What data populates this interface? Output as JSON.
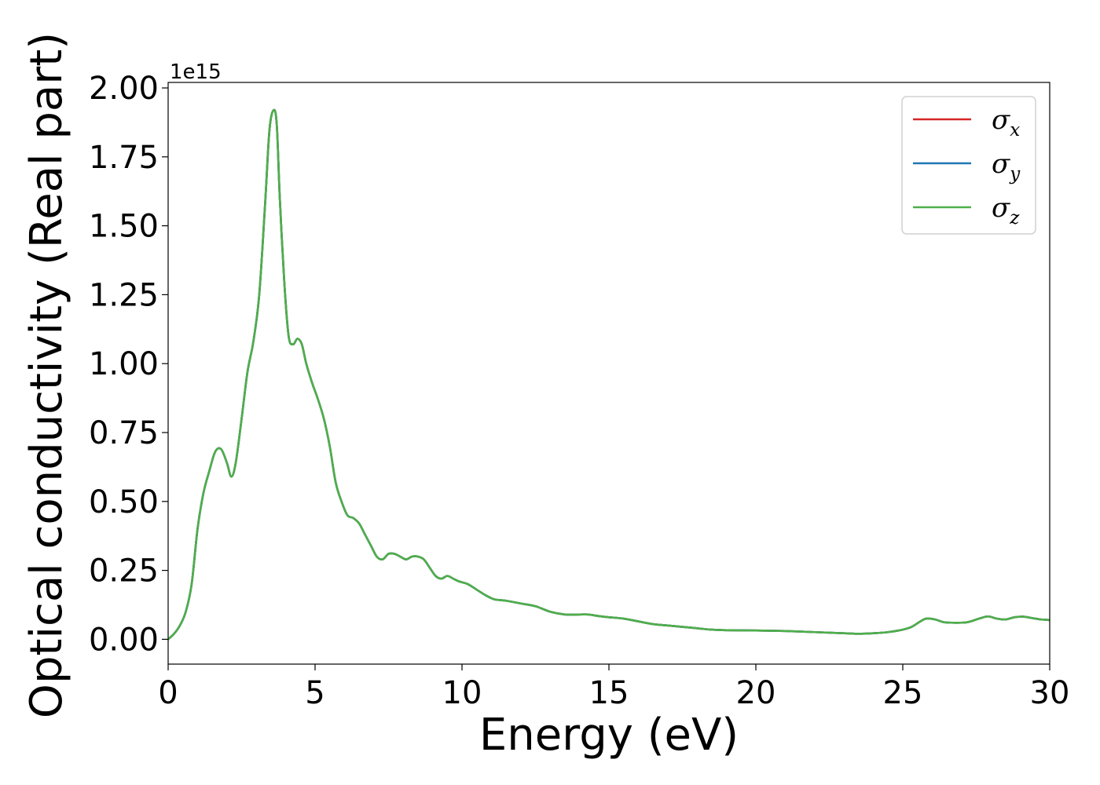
{
  "chart_data": {
    "type": "line",
    "title": "",
    "xlabel": "Energy (eV)",
    "ylabel": "Optical conductivity (Real part)",
    "y_offset_label": "1e15",
    "xlim": [
      0,
      30
    ],
    "ylim": [
      -0.09,
      2.02
    ],
    "xticks": [
      0,
      5,
      10,
      15,
      20,
      25,
      30
    ],
    "xtick_labels": [
      "0",
      "5",
      "10",
      "15",
      "20",
      "25",
      "30"
    ],
    "yticks": [
      0.0,
      0.25,
      0.5,
      0.75,
      1.0,
      1.25,
      1.5,
      1.75,
      2.0
    ],
    "ytick_labels": [
      "0.00",
      "0.25",
      "0.50",
      "0.75",
      "1.00",
      "1.25",
      "1.50",
      "1.75",
      "2.00"
    ],
    "grid": false,
    "legend_position": "top-right",
    "series": [
      {
        "name": "σx",
        "symbol": "σ",
        "subscript": "x",
        "color": "#d62728",
        "x": [
          0,
          0.2,
          0.4,
          0.6,
          0.8,
          1.0,
          1.2,
          1.4,
          1.6,
          1.8,
          2.0,
          2.15,
          2.3,
          2.5,
          2.7,
          2.9,
          3.1,
          3.3,
          3.45,
          3.6,
          3.7,
          3.8,
          3.95,
          4.1,
          4.25,
          4.4,
          4.55,
          4.7,
          4.9,
          5.1,
          5.3,
          5.5,
          5.7,
          5.9,
          6.1,
          6.3,
          6.5,
          6.7,
          6.9,
          7.1,
          7.3,
          7.5,
          7.7,
          7.9,
          8.1,
          8.3,
          8.5,
          8.7,
          8.9,
          9.1,
          9.3,
          9.5,
          9.7,
          9.9,
          10.2,
          10.5,
          10.8,
          11.1,
          11.5,
          12.0,
          12.5,
          13.0,
          13.5,
          14.0,
          14.3,
          14.6,
          15.0,
          15.5,
          16.0,
          16.5,
          17.0,
          17.5,
          18.0,
          18.5,
          19.0,
          20.0,
          21.0,
          22.0,
          23.0,
          23.5,
          24.0,
          24.5,
          25.0,
          25.3,
          25.6,
          25.8,
          26.1,
          26.4,
          26.8,
          27.2,
          27.6,
          27.9,
          28.2,
          28.5,
          28.8,
          29.1,
          29.4,
          29.7,
          30.0
        ],
        "values": [
          0.0,
          0.02,
          0.05,
          0.1,
          0.2,
          0.4,
          0.53,
          0.61,
          0.68,
          0.69,
          0.64,
          0.59,
          0.64,
          0.8,
          0.97,
          1.08,
          1.25,
          1.58,
          1.85,
          1.92,
          1.86,
          1.6,
          1.3,
          1.1,
          1.07,
          1.09,
          1.07,
          1.0,
          0.93,
          0.87,
          0.8,
          0.7,
          0.57,
          0.5,
          0.45,
          0.44,
          0.42,
          0.38,
          0.34,
          0.3,
          0.29,
          0.31,
          0.31,
          0.3,
          0.29,
          0.3,
          0.3,
          0.29,
          0.26,
          0.23,
          0.22,
          0.23,
          0.22,
          0.21,
          0.2,
          0.18,
          0.16,
          0.145,
          0.14,
          0.13,
          0.12,
          0.1,
          0.09,
          0.09,
          0.09,
          0.085,
          0.08,
          0.075,
          0.065,
          0.055,
          0.05,
          0.045,
          0.04,
          0.035,
          0.033,
          0.032,
          0.03,
          0.026,
          0.022,
          0.02,
          0.022,
          0.026,
          0.035,
          0.045,
          0.065,
          0.075,
          0.072,
          0.062,
          0.06,
          0.062,
          0.075,
          0.083,
          0.075,
          0.072,
          0.08,
          0.082,
          0.077,
          0.072,
          0.07
        ]
      },
      {
        "name": "σy",
        "symbol": "σ",
        "subscript": "y",
        "color": "#1f77b4",
        "x": [
          0,
          0.2,
          0.4,
          0.6,
          0.8,
          1.0,
          1.2,
          1.4,
          1.6,
          1.8,
          2.0,
          2.15,
          2.3,
          2.5,
          2.7,
          2.9,
          3.1,
          3.3,
          3.45,
          3.6,
          3.7,
          3.8,
          3.95,
          4.1,
          4.25,
          4.4,
          4.55,
          4.7,
          4.9,
          5.1,
          5.3,
          5.5,
          5.7,
          5.9,
          6.1,
          6.3,
          6.5,
          6.7,
          6.9,
          7.1,
          7.3,
          7.5,
          7.7,
          7.9,
          8.1,
          8.3,
          8.5,
          8.7,
          8.9,
          9.1,
          9.3,
          9.5,
          9.7,
          9.9,
          10.2,
          10.5,
          10.8,
          11.1,
          11.5,
          12.0,
          12.5,
          13.0,
          13.5,
          14.0,
          14.3,
          14.6,
          15.0,
          15.5,
          16.0,
          16.5,
          17.0,
          17.5,
          18.0,
          18.5,
          19.0,
          20.0,
          21.0,
          22.0,
          23.0,
          23.5,
          24.0,
          24.5,
          25.0,
          25.3,
          25.6,
          25.8,
          26.1,
          26.4,
          26.8,
          27.2,
          27.6,
          27.9,
          28.2,
          28.5,
          28.8,
          29.1,
          29.4,
          29.7,
          30.0
        ],
        "values": [
          0.0,
          0.02,
          0.05,
          0.1,
          0.2,
          0.4,
          0.53,
          0.61,
          0.68,
          0.69,
          0.64,
          0.59,
          0.64,
          0.8,
          0.97,
          1.08,
          1.25,
          1.58,
          1.85,
          1.92,
          1.86,
          1.6,
          1.3,
          1.1,
          1.07,
          1.09,
          1.07,
          1.0,
          0.93,
          0.87,
          0.8,
          0.7,
          0.57,
          0.5,
          0.45,
          0.44,
          0.42,
          0.38,
          0.34,
          0.3,
          0.29,
          0.31,
          0.31,
          0.3,
          0.29,
          0.3,
          0.3,
          0.29,
          0.26,
          0.23,
          0.22,
          0.23,
          0.22,
          0.21,
          0.2,
          0.18,
          0.16,
          0.145,
          0.14,
          0.13,
          0.12,
          0.1,
          0.09,
          0.09,
          0.09,
          0.085,
          0.08,
          0.075,
          0.065,
          0.055,
          0.05,
          0.045,
          0.04,
          0.035,
          0.033,
          0.032,
          0.03,
          0.026,
          0.022,
          0.02,
          0.022,
          0.026,
          0.035,
          0.045,
          0.065,
          0.075,
          0.072,
          0.062,
          0.06,
          0.062,
          0.075,
          0.083,
          0.075,
          0.072,
          0.08,
          0.082,
          0.077,
          0.072,
          0.07
        ]
      },
      {
        "name": "σz",
        "symbol": "σ",
        "subscript": "z",
        "color": "#4daf4a",
        "x": [
          0,
          0.2,
          0.4,
          0.6,
          0.8,
          1.0,
          1.2,
          1.4,
          1.6,
          1.8,
          2.0,
          2.15,
          2.3,
          2.5,
          2.7,
          2.9,
          3.1,
          3.3,
          3.45,
          3.6,
          3.7,
          3.8,
          3.95,
          4.1,
          4.25,
          4.4,
          4.55,
          4.7,
          4.9,
          5.1,
          5.3,
          5.5,
          5.7,
          5.9,
          6.1,
          6.3,
          6.5,
          6.7,
          6.9,
          7.1,
          7.3,
          7.5,
          7.7,
          7.9,
          8.1,
          8.3,
          8.5,
          8.7,
          8.9,
          9.1,
          9.3,
          9.5,
          9.7,
          9.9,
          10.2,
          10.5,
          10.8,
          11.1,
          11.5,
          12.0,
          12.5,
          13.0,
          13.5,
          14.0,
          14.3,
          14.6,
          15.0,
          15.5,
          16.0,
          16.5,
          17.0,
          17.5,
          18.0,
          18.5,
          19.0,
          20.0,
          21.0,
          22.0,
          23.0,
          23.5,
          24.0,
          24.5,
          25.0,
          25.3,
          25.6,
          25.8,
          26.1,
          26.4,
          26.8,
          27.2,
          27.6,
          27.9,
          28.2,
          28.5,
          28.8,
          29.1,
          29.4,
          29.7,
          30.0
        ],
        "values": [
          0.0,
          0.02,
          0.05,
          0.1,
          0.2,
          0.4,
          0.53,
          0.61,
          0.68,
          0.69,
          0.64,
          0.59,
          0.64,
          0.8,
          0.97,
          1.08,
          1.25,
          1.58,
          1.85,
          1.92,
          1.86,
          1.6,
          1.3,
          1.1,
          1.07,
          1.09,
          1.07,
          1.0,
          0.93,
          0.87,
          0.8,
          0.7,
          0.57,
          0.5,
          0.45,
          0.44,
          0.42,
          0.38,
          0.34,
          0.3,
          0.29,
          0.31,
          0.31,
          0.3,
          0.29,
          0.3,
          0.3,
          0.29,
          0.26,
          0.23,
          0.22,
          0.23,
          0.22,
          0.21,
          0.2,
          0.18,
          0.16,
          0.145,
          0.14,
          0.13,
          0.12,
          0.1,
          0.09,
          0.09,
          0.09,
          0.085,
          0.08,
          0.075,
          0.065,
          0.055,
          0.05,
          0.045,
          0.04,
          0.035,
          0.033,
          0.032,
          0.03,
          0.026,
          0.022,
          0.02,
          0.022,
          0.026,
          0.035,
          0.045,
          0.065,
          0.075,
          0.072,
          0.062,
          0.06,
          0.062,
          0.075,
          0.083,
          0.075,
          0.072,
          0.08,
          0.082,
          0.077,
          0.072,
          0.07
        ]
      }
    ]
  }
}
